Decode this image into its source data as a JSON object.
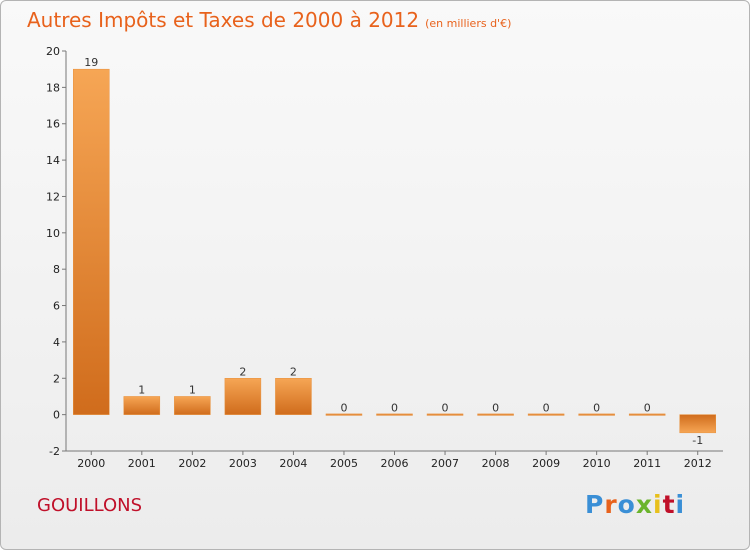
{
  "header": {
    "title": "Autres Impôts et Taxes de 2000 à 2012",
    "unit": "(en milliers d'€)"
  },
  "footer": {
    "commune": "GOUILLONS",
    "logo_letters": [
      "P",
      "r",
      "o",
      "x",
      "i",
      "t",
      "i"
    ]
  },
  "colors": {
    "title": "#e8621c",
    "commune": "#c0102a",
    "bar_light": "#f6a655",
    "bar_dark": "#d06c1c",
    "logo": [
      "#3a8fd6",
      "#e8621c",
      "#3a8fd6",
      "#6ab42c",
      "#e8c01c",
      "#c0102a",
      "#3a8fd6"
    ]
  },
  "chart_data": {
    "type": "bar",
    "title": "Autres Impôts et Taxes de 2000 à 2012",
    "subtitle": "(en milliers d'€)",
    "categories": [
      "2000",
      "2001",
      "2002",
      "2003",
      "2004",
      "2005",
      "2006",
      "2007",
      "2008",
      "2009",
      "2010",
      "2011",
      "2012"
    ],
    "values": [
      19,
      1,
      1,
      2,
      2,
      0,
      0,
      0,
      0,
      0,
      0,
      0,
      -1
    ],
    "value_labels": [
      "19",
      "1",
      "1",
      "2",
      "2",
      "0",
      "0",
      "0",
      "0",
      "0",
      "0",
      "0",
      "-1"
    ],
    "ylim": [
      -2,
      20
    ],
    "yticks": [
      -2,
      0,
      2,
      4,
      6,
      8,
      10,
      12,
      14,
      16,
      18,
      20
    ],
    "ytick_labels": [
      "-2",
      "0",
      "2",
      "4",
      "6",
      "8",
      "10",
      "12",
      "14",
      "16",
      "18",
      "20"
    ],
    "xlabel": "",
    "ylabel": "",
    "grid": false,
    "legend": "none"
  }
}
